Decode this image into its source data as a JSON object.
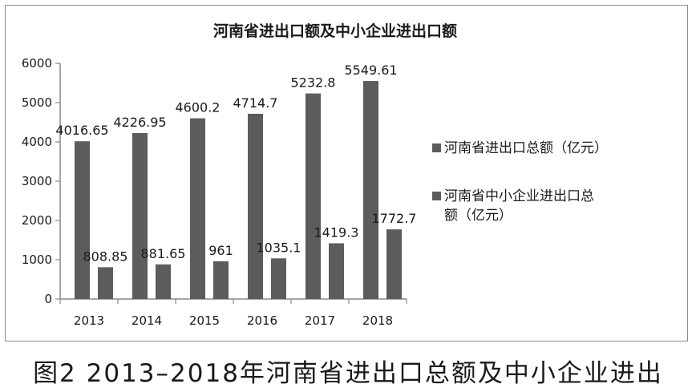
{
  "caption": "图2 2013–2018年河南省进出口总额及中小企业进出",
  "chart_data": {
    "type": "bar",
    "title": "河南省进出口额及中小企业进出口额",
    "xlabel": "",
    "ylabel": "",
    "categories": [
      "2013",
      "2014",
      "2015",
      "2016",
      "2017",
      "2018"
    ],
    "ylim": [
      0,
      6000
    ],
    "yticks": [
      0,
      1000,
      2000,
      3000,
      4000,
      5000,
      6000
    ],
    "grid": false,
    "legend_position": "right",
    "series": [
      {
        "name": "河南省进出口总额（亿元）",
        "name_lines": [
          "河南省进出口总额（亿元）"
        ],
        "color": "#5c5c5c",
        "values": [
          4016.65,
          4226.95,
          4600.2,
          4714.7,
          5232.8,
          5549.61
        ],
        "labels": [
          "4016.65",
          "4226.95",
          "4600.2",
          "4714.7",
          "5232.8",
          "5549.61"
        ]
      },
      {
        "name": "河南省中小企业进出口总额（亿元）",
        "name_lines": [
          "河南省中小企业进出口总",
          "额（亿元）"
        ],
        "color": "#5c5c5c",
        "values": [
          808.85,
          881.65,
          961,
          1035.1,
          1419.3,
          1772.7
        ],
        "labels": [
          "808.85",
          "881.65",
          "961",
          "1035.1",
          "1419.3",
          "1772.7"
        ]
      }
    ]
  }
}
